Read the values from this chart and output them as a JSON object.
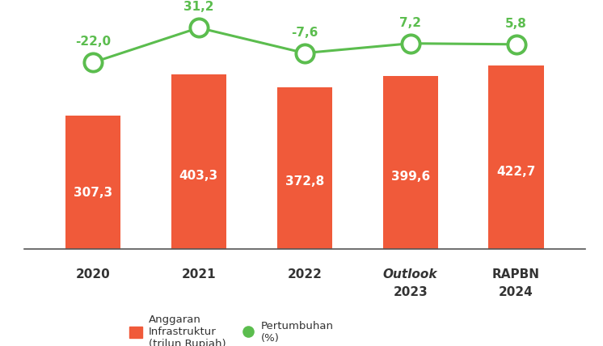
{
  "categories": [
    "2020",
    "2021",
    "2022",
    "2023",
    "2024"
  ],
  "cat_labels": [
    "2020",
    "2021",
    "2022",
    "Outlook\n2023",
    "RAPBN\n2024"
  ],
  "cat_italic": [
    false,
    false,
    false,
    true,
    false
  ],
  "bar_values": [
    307.3,
    403.3,
    372.8,
    399.6,
    422.7
  ],
  "bar_labels": [
    "307,3",
    "403,3",
    "372,8",
    "399,6",
    "422,7"
  ],
  "growth_values": [
    -22.0,
    31.2,
    -7.6,
    7.2,
    5.8
  ],
  "growth_labels": [
    "-22,0",
    "31,2",
    "-7,6",
    "7,2",
    "5,8"
  ],
  "bar_color": "#F05A3A",
  "line_color": "#5BBD4E",
  "bar_label_color": "#FFFFFF",
  "growth_label_color": "#5BBD4E",
  "background_color": "#FFFFFF",
  "bar_ylim": [
    0,
    550
  ],
  "legend_bar_label": "Anggaran\nInfrastruktur\n(trilun Rupiah)",
  "legend_line_label": "Pertumbuhan\n(%)",
  "bar_label_fontsize": 11,
  "growth_label_fontsize": 11,
  "tick_fontsize": 11,
  "legend_fontsize": 9.5,
  "marker_size": 16,
  "line_width": 2.2,
  "marker_face_color": "#FFFFFF",
  "marker_edge_color": "#5BBD4E",
  "marker_edge_width": 2.8
}
